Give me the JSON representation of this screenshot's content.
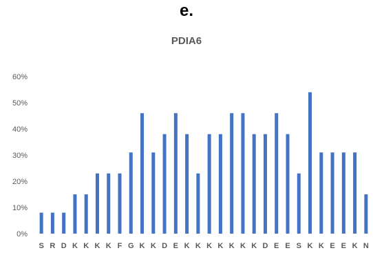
{
  "panel_label": "e.",
  "chart_data": {
    "type": "bar",
    "title": "PDIA6",
    "xlabel": "",
    "ylabel": "",
    "ylim": [
      0,
      60
    ],
    "yticks": [
      "0%",
      "10%",
      "20%",
      "30%",
      "40%",
      "50%",
      "60%"
    ],
    "grid": false,
    "bar_color": "#4472C4",
    "categories": [
      "S",
      "R",
      "D",
      "K",
      "K",
      "K",
      "K",
      "F",
      "G",
      "K",
      "K",
      "D",
      "E",
      "K",
      "K",
      "K",
      "K",
      "K",
      "K",
      "K",
      "D",
      "E",
      "E",
      "S",
      "K",
      "K",
      "E",
      "E",
      "K",
      "N"
    ],
    "values": [
      8,
      8,
      8,
      15,
      15,
      23,
      23,
      23,
      31,
      46,
      31,
      38,
      46,
      38,
      23,
      38,
      38,
      46,
      46,
      38,
      38,
      46,
      38,
      23,
      54,
      31,
      31,
      31,
      31,
      15
    ]
  }
}
